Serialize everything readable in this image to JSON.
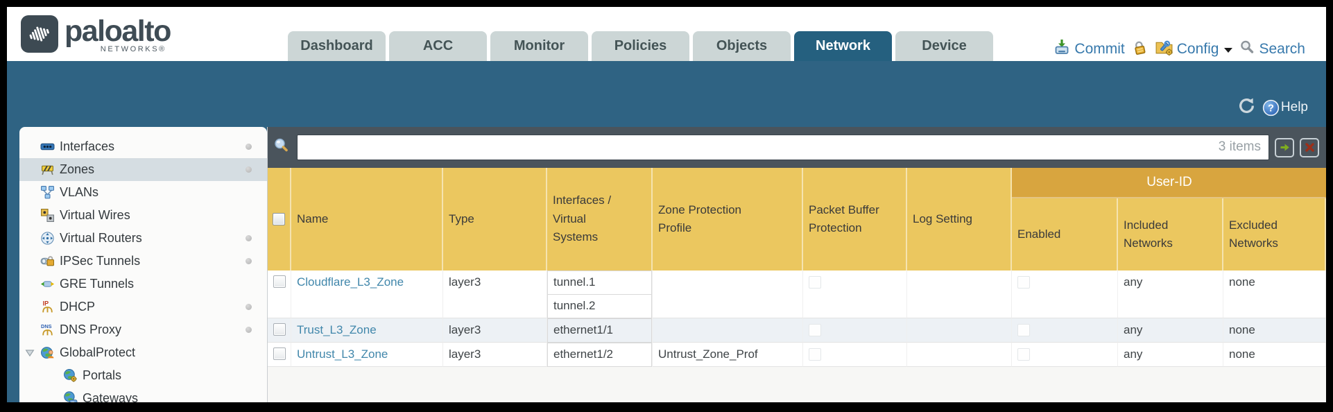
{
  "brand": {
    "name": "paloalto",
    "sub": "NETWORKS®"
  },
  "nav": {
    "tabs": [
      {
        "label": "Dashboard"
      },
      {
        "label": "ACC"
      },
      {
        "label": "Monitor"
      },
      {
        "label": "Policies"
      },
      {
        "label": "Objects"
      },
      {
        "label": "Network",
        "active": true
      },
      {
        "label": "Device"
      }
    ],
    "commit_label": "Commit",
    "config_label": "Config",
    "search_label": "Search"
  },
  "subheader": {
    "help_label": "Help"
  },
  "sidebar": {
    "items": [
      {
        "label": "Interfaces",
        "icon": "interfaces-icon",
        "dot": true
      },
      {
        "label": "Zones",
        "icon": "zones-icon",
        "dot": true,
        "selected": true
      },
      {
        "label": "VLANs",
        "icon": "vlans-icon"
      },
      {
        "label": "Virtual Wires",
        "icon": "virtual-wires-icon"
      },
      {
        "label": "Virtual Routers",
        "icon": "virtual-routers-icon",
        "dot": true
      },
      {
        "label": "IPSec Tunnels",
        "icon": "ipsec-tunnels-icon",
        "dot": true
      },
      {
        "label": "GRE Tunnels",
        "icon": "gre-tunnels-icon"
      },
      {
        "label": "DHCP",
        "icon": "dhcp-icon",
        "dot": true
      },
      {
        "label": "DNS Proxy",
        "icon": "dns-proxy-icon",
        "dot": true
      },
      {
        "label": "GlobalProtect",
        "icon": "globalprotect-icon",
        "expanded": true
      },
      {
        "label": "Portals",
        "icon": "portals-icon",
        "child": true
      },
      {
        "label": "Gateways",
        "icon": "gateways-icon",
        "child": true
      }
    ]
  },
  "toolbar": {
    "items_count": "3 items"
  },
  "table": {
    "group_header": "User-ID",
    "columns": [
      "Name",
      "Type",
      "Interfaces /\nVirtual\nSystems",
      "Zone Protection\nProfile",
      "Packet Buffer\nProtection",
      "Log Setting",
      "Enabled",
      "Included\nNetworks",
      "Excluded\nNetworks"
    ],
    "rows": [
      {
        "name": "Cloudflare_L3_Zone",
        "type": "layer3",
        "interfaces": [
          "tunnel.1",
          "tunnel.2"
        ],
        "zone_protection_profile": "",
        "log_setting": "",
        "included_networks": "any",
        "excluded_networks": "none"
      },
      {
        "name": "Trust_L3_Zone",
        "type": "layer3",
        "interfaces": [
          "ethernet1/1"
        ],
        "zone_protection_profile": "",
        "log_setting": "",
        "included_networks": "any",
        "excluded_networks": "none"
      },
      {
        "name": "Untrust_L3_Zone",
        "type": "layer3",
        "interfaces": [
          "ethernet1/2"
        ],
        "zone_protection_profile": "Untrust_Zone_Prof",
        "log_setting": "",
        "included_networks": "any",
        "excluded_networks": "none"
      }
    ]
  },
  "colors": {
    "teal_band": "#2f6383",
    "active_tab": "#25607f",
    "gold_header": "#ebc75f",
    "user_id_band": "#d8a53f",
    "slate_bar": "#4a545c",
    "link_blue": "#4187ab",
    "action_blue": "#3779ac"
  }
}
